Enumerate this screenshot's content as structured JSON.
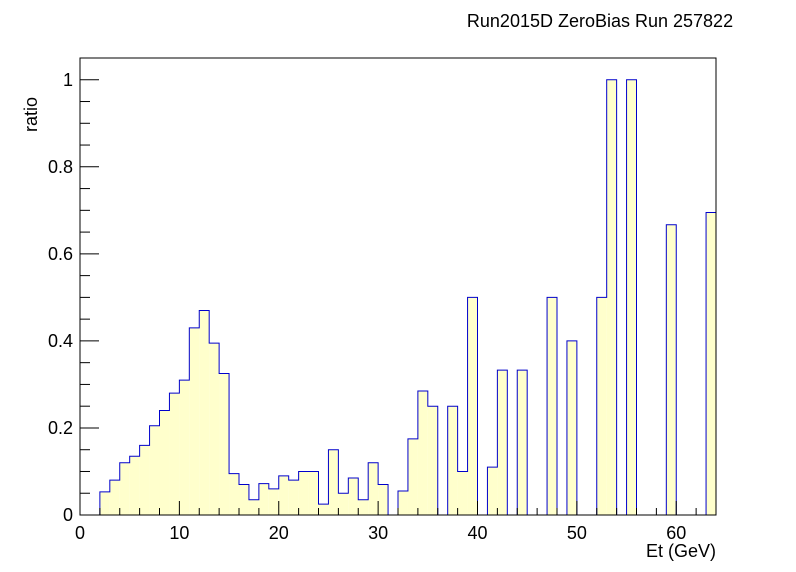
{
  "chart_data": {
    "type": "histogram",
    "title": "Run2015D ZeroBias Run 257822",
    "xlabel": "Et (GeV)",
    "ylabel": "ratio",
    "xlim": [
      0,
      64
    ],
    "ylim": [
      0,
      1.05
    ],
    "bin_width": 1,
    "x_ticks": [
      0,
      10,
      20,
      30,
      40,
      50,
      60
    ],
    "y_ticks": [
      0,
      0.2,
      0.4,
      0.6,
      0.8,
      1
    ],
    "y_tick_labels": [
      "0",
      "0.2",
      "0.4",
      "0.6",
      "0.8",
      "1"
    ],
    "fill_color": "#ffffcc",
    "line_color": "#0000cc",
    "values": [
      0,
      0,
      0.053,
      0.08,
      0.12,
      0.135,
      0.16,
      0.205,
      0.24,
      0.28,
      0.31,
      0.43,
      0.47,
      0.395,
      0.325,
      0.095,
      0.07,
      0.035,
      0.072,
      0.06,
      0.09,
      0.08,
      0.1,
      0.1,
      0.025,
      0.15,
      0.05,
      0.085,
      0.035,
      0.12,
      0.07,
      0,
      0.055,
      0.175,
      0.285,
      0.25,
      0,
      0.25,
      0.1,
      0.5,
      0,
      0.11,
      0.333,
      0,
      0.333,
      0,
      0,
      0.5,
      0,
      0.4,
      0,
      0,
      0.5,
      1.0,
      0,
      1.0,
      0,
      0,
      0,
      0.667,
      0,
      0,
      0,
      0.695
    ]
  }
}
